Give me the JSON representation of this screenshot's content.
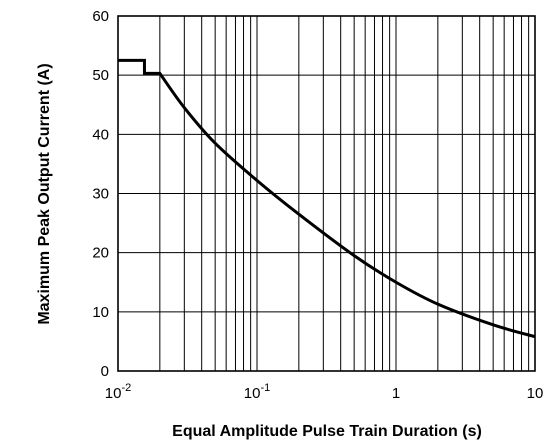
{
  "chart_data": {
    "type": "line",
    "title": "",
    "xlabel": "Equal Amplitude Pulse Train Duration (s)",
    "ylabel": "Maximum Peak Output Current (A)",
    "x_scale": "log",
    "xlim": [
      0.01,
      10
    ],
    "ylim": [
      0,
      60
    ],
    "grid": true,
    "legend": "none",
    "x_ticks": [
      {
        "value": 0.01,
        "base": "10",
        "exp": "-2"
      },
      {
        "value": 0.1,
        "base": "10",
        "exp": "-1"
      },
      {
        "value": 1,
        "base": "1",
        "exp": ""
      },
      {
        "value": 10,
        "base": "10",
        "exp": ""
      }
    ],
    "y_ticks": [
      0,
      10,
      20,
      30,
      40,
      50,
      60
    ],
    "series": [
      {
        "color": "#000000",
        "x": [
          0.01,
          0.0155,
          0.0155,
          0.02,
          0.03,
          0.05,
          0.1,
          0.2,
          0.5,
          1,
          2,
          5,
          10
        ],
        "y": [
          52.5,
          52.5,
          50.3,
          50.3,
          44.5,
          38.5,
          32.2,
          26.5,
          19.5,
          15.0,
          11.3,
          7.8,
          5.8
        ]
      }
    ]
  }
}
